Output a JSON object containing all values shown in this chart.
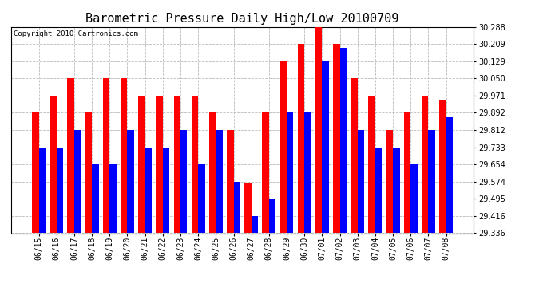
{
  "title": "Barometric Pressure Daily High/Low 20100709",
  "copyright_text": "Copyright 2010 Cartronics.com",
  "categories": [
    "06/15",
    "06/16",
    "06/17",
    "06/18",
    "06/19",
    "06/20",
    "06/21",
    "06/22",
    "06/23",
    "06/24",
    "06/25",
    "06/26",
    "06/27",
    "06/28",
    "06/29",
    "06/30",
    "07/01",
    "07/02",
    "07/03",
    "07/04",
    "07/05",
    "07/06",
    "07/07",
    "07/08"
  ],
  "highs": [
    29.892,
    29.971,
    30.05,
    29.892,
    30.05,
    30.05,
    29.971,
    29.971,
    29.971,
    29.971,
    29.892,
    29.812,
    29.571,
    29.892,
    30.129,
    30.209,
    30.288,
    30.209,
    30.05,
    29.971,
    29.812,
    29.892,
    29.971,
    29.95
  ],
  "lows": [
    29.733,
    29.733,
    29.812,
    29.654,
    29.654,
    29.812,
    29.733,
    29.733,
    29.812,
    29.654,
    29.812,
    29.574,
    29.416,
    29.495,
    29.892,
    29.892,
    30.129,
    30.19,
    29.812,
    29.733,
    29.733,
    29.654,
    29.812,
    29.871
  ],
  "high_color": "#FF0000",
  "low_color": "#0000FF",
  "background_color": "#FFFFFF",
  "plot_bg_color": "#FFFFFF",
  "grid_color": "#BBBBBB",
  "ylim_min": 29.336,
  "ylim_max": 30.288,
  "yticks": [
    29.336,
    29.416,
    29.495,
    29.574,
    29.654,
    29.733,
    29.812,
    29.892,
    29.971,
    30.05,
    30.129,
    30.209,
    30.288
  ],
  "title_fontsize": 11,
  "tick_fontsize": 7,
  "copyright_fontsize": 6.5,
  "fig_width": 6.9,
  "fig_height": 3.75,
  "dpi": 100
}
